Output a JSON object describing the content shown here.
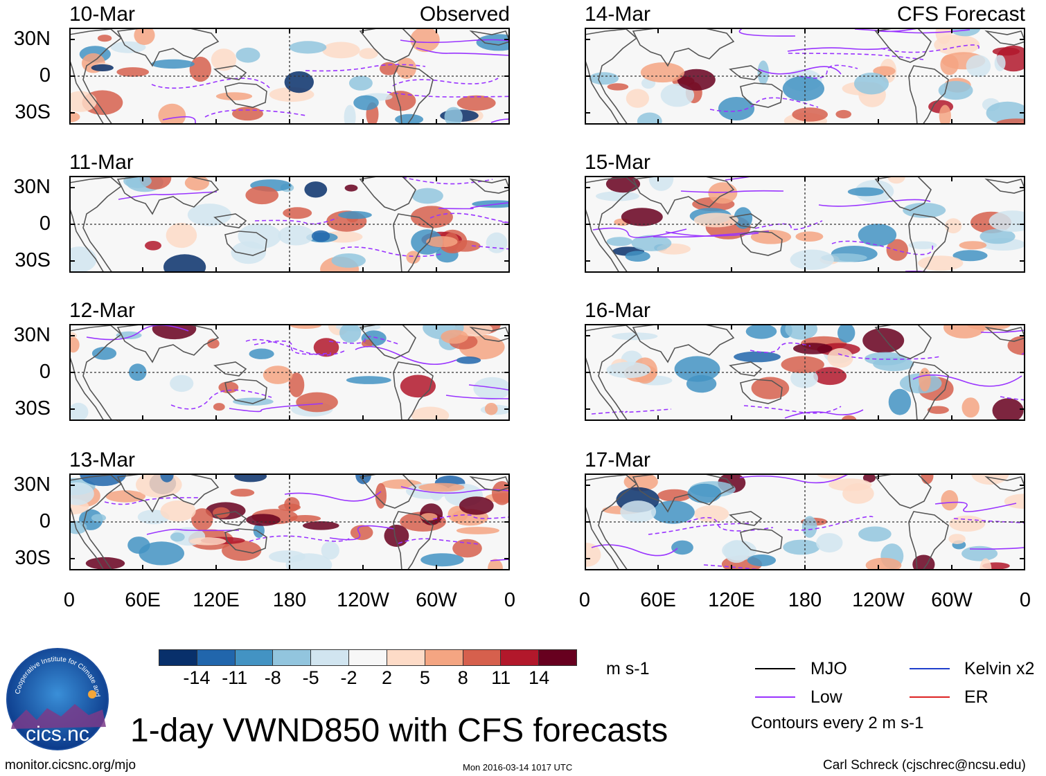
{
  "observed_label": "Observed",
  "forecast_label": "CFS Forecast",
  "observed_dates": [
    "10-Mar",
    "11-Mar",
    "12-Mar",
    "13-Mar"
  ],
  "forecast_dates": [
    "14-Mar",
    "15-Mar",
    "16-Mar",
    "17-Mar"
  ],
  "lat_labels": [
    "30N",
    "0",
    "30S"
  ],
  "lon_labels": [
    "0",
    "60E",
    "120E",
    "180",
    "120W",
    "60W",
    "0"
  ],
  "colorbar": {
    "colors": [
      "#08306b",
      "#2166ac",
      "#4393c3",
      "#92c5de",
      "#d1e5f0",
      "#f7f7f7",
      "#fddbc7",
      "#f4a582",
      "#d6604d",
      "#b2182b",
      "#67001f"
    ],
    "labels": [
      "-14",
      "-11",
      "-8",
      "-5",
      "-2",
      "2",
      "5",
      "8",
      "11",
      "14"
    ],
    "unit": "m s-1"
  },
  "legend": {
    "mjo": {
      "label": "MJO",
      "color": "#000000"
    },
    "low": {
      "label": "Low",
      "color": "#9933ff"
    },
    "kelvin": {
      "label": "Kelvin x2",
      "color": "#1f3fcc"
    },
    "er": {
      "label": "ER",
      "color": "#dd2222"
    },
    "note": "Contours every 2 m s-1"
  },
  "title": "1-day VWND850 with CFS forecasts",
  "logo_text": "cics.nc",
  "logo_ring_text": "Cooperative Institute for Climate and Satellites",
  "footer": {
    "left": "monitor.cicsnc.org/mjo",
    "center": "Mon 2016-03-14 1017 UTC",
    "right": "Carl Schreck (cjschrec@ncsu.edu)"
  }
}
